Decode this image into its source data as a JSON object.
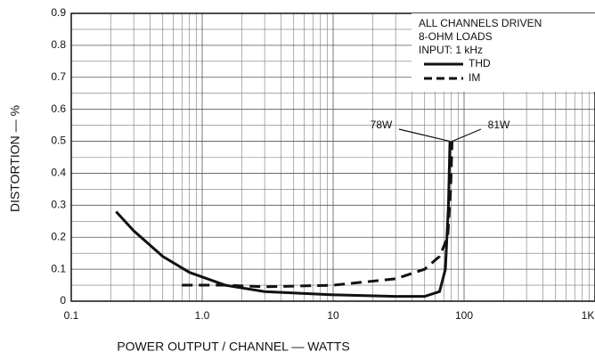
{
  "chart_data": {
    "type": "line",
    "xlabel": "POWER OUTPUT / CHANNEL — WATTS",
    "ylabel": "DISTORTION — %",
    "legend_title": [
      "ALL CHANNELS DRIVEN",
      "8-OHM LOADS",
      "INPUT: 1 kHz"
    ],
    "annotations": [
      "78W",
      "81W"
    ],
    "xscale": "log",
    "xlim": [
      0.1,
      1000
    ],
    "xticks": [
      0.1,
      {
        "value": 1,
        "label": "1.0"
      },
      10,
      100,
      {
        "value": 1000,
        "label": "1K"
      }
    ],
    "ylim": [
      0,
      0.9
    ],
    "yticks": [
      0,
      0.1,
      0.2,
      0.3,
      0.4,
      0.5,
      0.6,
      0.7,
      0.8,
      0.9
    ],
    "grid": true,
    "legend": "upper right",
    "series": [
      {
        "name": "THD",
        "color": "#111111",
        "dash": false,
        "x": [
          0.22,
          0.3,
          0.5,
          0.8,
          1.5,
          3,
          10,
          30,
          50,
          65,
          72,
          76,
          78
        ],
        "values": [
          0.28,
          0.22,
          0.14,
          0.09,
          0.05,
          0.03,
          0.02,
          0.015,
          0.015,
          0.03,
          0.1,
          0.3,
          0.5
        ]
      },
      {
        "name": "IM",
        "color": "#111111",
        "dash": true,
        "x": [
          0.7,
          1.5,
          3,
          10,
          30,
          50,
          65,
          75,
          79,
          81
        ],
        "values": [
          0.05,
          0.05,
          0.045,
          0.05,
          0.07,
          0.1,
          0.14,
          0.2,
          0.35,
          0.5
        ]
      }
    ]
  }
}
